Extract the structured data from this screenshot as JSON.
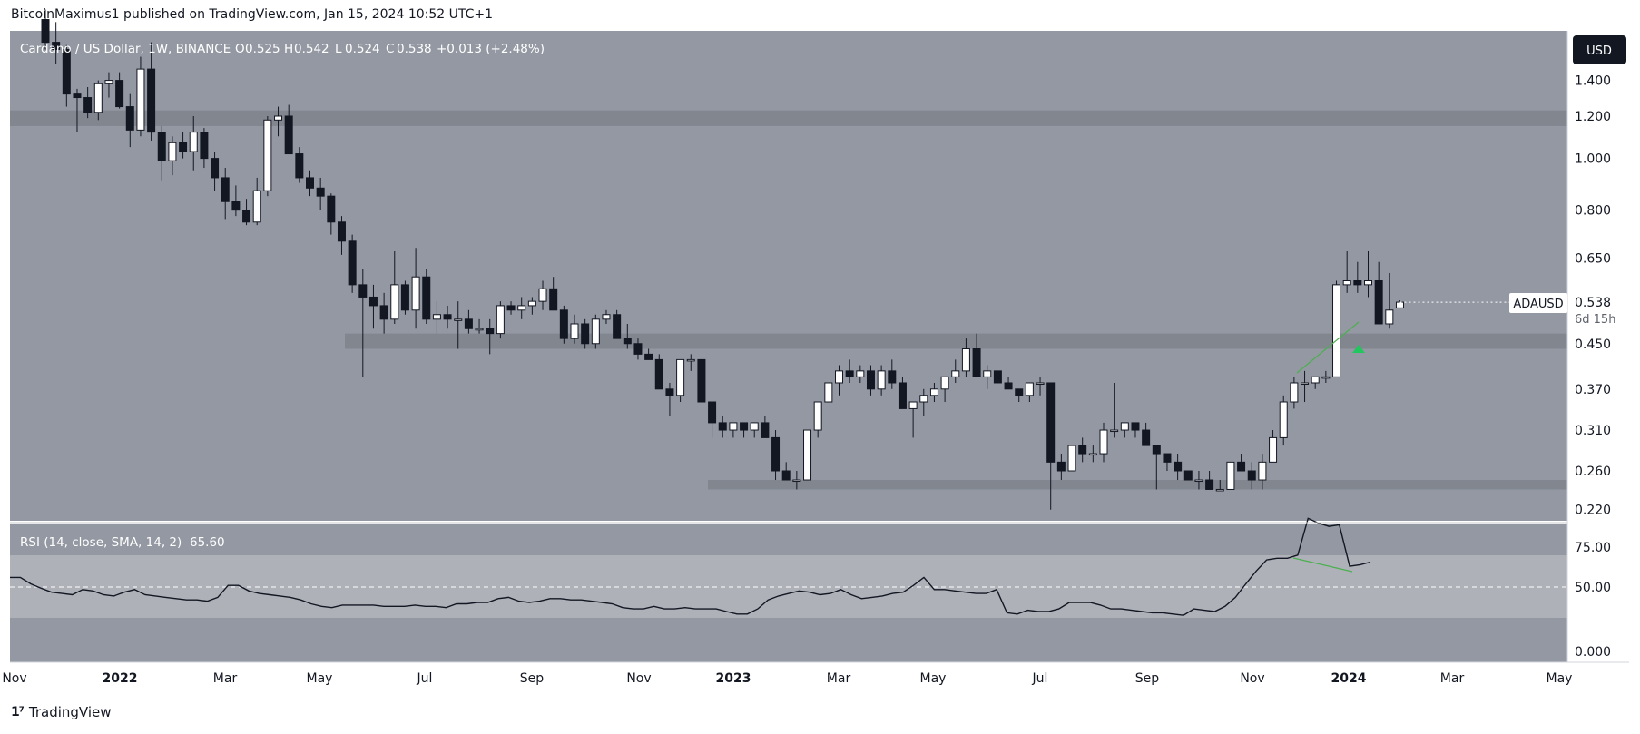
{
  "publisher_line": "BitcoinMaximus1 published on TradingView.com, Jan 15, 2024 10:52 UTC+1",
  "footer_brand": "TradingView",
  "colors": {
    "pane_bg": "#9398a2",
    "rsi_band": "#aeb1b8",
    "zone": "#7e828c",
    "up_body": "#ffffff",
    "down_body": "#131722",
    "wick": "#131722",
    "divergence": "#4caf50",
    "arrow": "#22c55e",
    "usd_btn": "#131722"
  },
  "legend": {
    "symbol": "Cardano / US Dollar, 1W, BINANCE",
    "o_label": "O",
    "o": "0.525",
    "h_label": "H",
    "h": "0.542",
    "l_label": "L",
    "l": "0.524",
    "c_label": "C",
    "c": "0.538",
    "change": "+0.013 (+2.48%)"
  },
  "usd_button": "USD",
  "price_tag": {
    "symbol": "ADAUSD",
    "price": "0.538",
    "countdown": "6d 15h"
  },
  "rsi_legend": {
    "label": "RSI (14, close, SMA, 14, 2)",
    "value": "65.60"
  },
  "chart_data": [
    {
      "type": "candlestick",
      "title": "Cardano / US Dollar, 1W, BINANCE",
      "y_scale": "log",
      "y_ticks": [
        "1.400",
        "1.200",
        "1.000",
        "0.800",
        "0.650",
        "0.450",
        "0.370",
        "0.310",
        "0.260",
        "0.220"
      ],
      "x_ticks": [
        "Nov",
        "2022",
        "Mar",
        "May",
        "Jul",
        "Sep",
        "Nov",
        "2023",
        "Mar",
        "May",
        "Jul",
        "Sep",
        "Nov",
        "2024",
        "Mar",
        "May"
      ],
      "horizontal_zones": [
        [
          1.15,
          1.23
        ],
        [
          0.44,
          0.47
        ],
        [
          0.24,
          0.25
        ]
      ],
      "last_close": 0.538,
      "candles_ohlc": [
        [
          1.82,
          1.9,
          1.6,
          1.65
        ],
        [
          1.65,
          1.8,
          1.5,
          1.6
        ],
        [
          1.6,
          1.63,
          1.25,
          1.32
        ],
        [
          1.32,
          1.35,
          1.12,
          1.3
        ],
        [
          1.3,
          1.36,
          1.19,
          1.22
        ],
        [
          1.22,
          1.4,
          1.18,
          1.38
        ],
        [
          1.38,
          1.45,
          1.3,
          1.4
        ],
        [
          1.4,
          1.45,
          1.24,
          1.25
        ],
        [
          1.25,
          1.32,
          1.05,
          1.13
        ],
        [
          1.13,
          1.55,
          1.1,
          1.47
        ],
        [
          1.47,
          1.65,
          1.08,
          1.12
        ],
        [
          1.12,
          1.15,
          0.91,
          0.99
        ],
        [
          0.99,
          1.1,
          0.93,
          1.07
        ],
        [
          1.07,
          1.12,
          1.0,
          1.03
        ],
        [
          1.03,
          1.2,
          0.95,
          1.12
        ],
        [
          1.12,
          1.14,
          0.96,
          1.0
        ],
        [
          1.0,
          1.03,
          0.87,
          0.92
        ],
        [
          0.92,
          0.96,
          0.77,
          0.83
        ],
        [
          0.83,
          0.89,
          0.78,
          0.8
        ],
        [
          0.8,
          0.84,
          0.75,
          0.76
        ],
        [
          0.76,
          0.92,
          0.75,
          0.87
        ],
        [
          0.87,
          1.2,
          0.85,
          1.18
        ],
        [
          1.18,
          1.25,
          1.1,
          1.2
        ],
        [
          1.2,
          1.26,
          1.02,
          1.02
        ],
        [
          1.02,
          1.05,
          0.9,
          0.92
        ],
        [
          0.92,
          0.95,
          0.85,
          0.88
        ],
        [
          0.88,
          0.92,
          0.8,
          0.85
        ],
        [
          0.85,
          0.86,
          0.72,
          0.76
        ],
        [
          0.76,
          0.78,
          0.66,
          0.7
        ],
        [
          0.7,
          0.72,
          0.56,
          0.58
        ],
        [
          0.58,
          0.62,
          0.39,
          0.55
        ],
        [
          0.55,
          0.58,
          0.48,
          0.53
        ],
        [
          0.53,
          0.56,
          0.47,
          0.5
        ],
        [
          0.5,
          0.67,
          0.49,
          0.58
        ],
        [
          0.58,
          0.59,
          0.51,
          0.52
        ],
        [
          0.52,
          0.68,
          0.48,
          0.6
        ],
        [
          0.6,
          0.62,
          0.49,
          0.5
        ],
        [
          0.5,
          0.54,
          0.47,
          0.51
        ],
        [
          0.51,
          0.53,
          0.48,
          0.5
        ],
        [
          0.5,
          0.54,
          0.44,
          0.5
        ],
        [
          0.5,
          0.52,
          0.47,
          0.48
        ],
        [
          0.48,
          0.5,
          0.47,
          0.48
        ],
        [
          0.48,
          0.5,
          0.43,
          0.47
        ],
        [
          0.47,
          0.54,
          0.46,
          0.53
        ],
        [
          0.53,
          0.54,
          0.51,
          0.52
        ],
        [
          0.52,
          0.55,
          0.5,
          0.53
        ],
        [
          0.53,
          0.55,
          0.51,
          0.54
        ],
        [
          0.54,
          0.59,
          0.52,
          0.57
        ],
        [
          0.57,
          0.6,
          0.52,
          0.52
        ],
        [
          0.52,
          0.53,
          0.45,
          0.46
        ],
        [
          0.46,
          0.51,
          0.45,
          0.49
        ],
        [
          0.49,
          0.5,
          0.44,
          0.45
        ],
        [
          0.45,
          0.51,
          0.44,
          0.5
        ],
        [
          0.5,
          0.52,
          0.49,
          0.51
        ],
        [
          0.51,
          0.52,
          0.46,
          0.46
        ],
        [
          0.46,
          0.49,
          0.44,
          0.45
        ],
        [
          0.45,
          0.46,
          0.42,
          0.43
        ],
        [
          0.43,
          0.44,
          0.42,
          0.42
        ],
        [
          0.42,
          0.43,
          0.37,
          0.37
        ],
        [
          0.37,
          0.38,
          0.33,
          0.36
        ],
        [
          0.36,
          0.42,
          0.35,
          0.42
        ],
        [
          0.42,
          0.43,
          0.4,
          0.42
        ],
        [
          0.42,
          0.42,
          0.36,
          0.35
        ],
        [
          0.35,
          0.35,
          0.3,
          0.32
        ],
        [
          0.32,
          0.33,
          0.3,
          0.31
        ],
        [
          0.31,
          0.32,
          0.3,
          0.32
        ],
        [
          0.32,
          0.32,
          0.3,
          0.31
        ],
        [
          0.31,
          0.32,
          0.3,
          0.32
        ],
        [
          0.32,
          0.33,
          0.3,
          0.3
        ],
        [
          0.3,
          0.31,
          0.25,
          0.26
        ],
        [
          0.26,
          0.27,
          0.25,
          0.25
        ],
        [
          0.25,
          0.26,
          0.24,
          0.25
        ],
        [
          0.25,
          0.31,
          0.25,
          0.31
        ],
        [
          0.31,
          0.35,
          0.3,
          0.35
        ],
        [
          0.35,
          0.38,
          0.35,
          0.38
        ],
        [
          0.38,
          0.41,
          0.36,
          0.4
        ],
        [
          0.4,
          0.42,
          0.38,
          0.39
        ],
        [
          0.39,
          0.41,
          0.38,
          0.4
        ],
        [
          0.4,
          0.41,
          0.36,
          0.37
        ],
        [
          0.37,
          0.41,
          0.36,
          0.4
        ],
        [
          0.4,
          0.42,
          0.37,
          0.38
        ],
        [
          0.38,
          0.39,
          0.35,
          0.34
        ],
        [
          0.34,
          0.35,
          0.3,
          0.35
        ],
        [
          0.35,
          0.37,
          0.33,
          0.36
        ],
        [
          0.36,
          0.38,
          0.35,
          0.37
        ],
        [
          0.37,
          0.39,
          0.35,
          0.39
        ],
        [
          0.39,
          0.42,
          0.38,
          0.4
        ],
        [
          0.4,
          0.46,
          0.39,
          0.44
        ],
        [
          0.44,
          0.47,
          0.39,
          0.39
        ],
        [
          0.39,
          0.41,
          0.37,
          0.4
        ],
        [
          0.4,
          0.4,
          0.38,
          0.38
        ],
        [
          0.38,
          0.39,
          0.37,
          0.37
        ],
        [
          0.37,
          0.37,
          0.35,
          0.36
        ],
        [
          0.36,
          0.38,
          0.35,
          0.38
        ],
        [
          0.38,
          0.39,
          0.36,
          0.38
        ],
        [
          0.38,
          0.38,
          0.22,
          0.27
        ],
        [
          0.27,
          0.28,
          0.25,
          0.26
        ],
        [
          0.26,
          0.29,
          0.26,
          0.29
        ],
        [
          0.29,
          0.3,
          0.27,
          0.28
        ],
        [
          0.28,
          0.29,
          0.27,
          0.28
        ],
        [
          0.28,
          0.32,
          0.27,
          0.31
        ],
        [
          0.31,
          0.38,
          0.3,
          0.31
        ],
        [
          0.31,
          0.32,
          0.3,
          0.32
        ],
        [
          0.32,
          0.32,
          0.3,
          0.31
        ],
        [
          0.31,
          0.32,
          0.29,
          0.29
        ],
        [
          0.29,
          0.29,
          0.24,
          0.28
        ],
        [
          0.28,
          0.28,
          0.26,
          0.27
        ],
        [
          0.27,
          0.28,
          0.25,
          0.26
        ],
        [
          0.26,
          0.26,
          0.25,
          0.25
        ],
        [
          0.25,
          0.26,
          0.24,
          0.25
        ],
        [
          0.25,
          0.26,
          0.24,
          0.24
        ],
        [
          0.24,
          0.25,
          0.24,
          0.24
        ],
        [
          0.24,
          0.27,
          0.24,
          0.27
        ],
        [
          0.27,
          0.28,
          0.26,
          0.26
        ],
        [
          0.26,
          0.27,
          0.24,
          0.25
        ],
        [
          0.25,
          0.28,
          0.24,
          0.27
        ],
        [
          0.27,
          0.31,
          0.27,
          0.3
        ],
        [
          0.3,
          0.36,
          0.29,
          0.35
        ],
        [
          0.35,
          0.39,
          0.34,
          0.38
        ],
        [
          0.38,
          0.4,
          0.35,
          0.38
        ],
        [
          0.38,
          0.39,
          0.37,
          0.39
        ],
        [
          0.39,
          0.4,
          0.38,
          0.39
        ],
        [
          0.39,
          0.59,
          0.39,
          0.58
        ],
        [
          0.58,
          0.67,
          0.56,
          0.59
        ],
        [
          0.59,
          0.64,
          0.56,
          0.58
        ],
        [
          0.58,
          0.67,
          0.55,
          0.59
        ],
        [
          0.59,
          0.64,
          0.5,
          0.49
        ],
        [
          0.49,
          0.61,
          0.48,
          0.52
        ],
        [
          0.525,
          0.542,
          0.524,
          0.538
        ]
      ],
      "annotations": [
        "bullish divergence trend line",
        "green up arrow"
      ]
    },
    {
      "type": "line",
      "title": "RSI (14, close, SMA, 14, 2)",
      "y_ticks": [
        "75.00",
        "50.00",
        "0.000"
      ],
      "band": [
        30,
        70
      ],
      "midline": 50,
      "last_value": 65.6,
      "values": [
        56,
        56,
        52,
        49,
        46,
        45,
        44,
        48,
        47,
        44,
        43,
        46,
        48,
        44,
        43,
        42,
        41,
        40,
        40,
        39,
        42,
        51,
        51,
        47,
        45,
        44,
        43,
        42,
        40,
        37,
        35,
        34,
        36,
        36,
        36,
        36,
        35,
        35,
        35,
        36,
        35,
        35,
        34,
        37,
        37,
        38,
        38,
        41,
        42,
        39,
        38,
        39,
        41,
        41,
        40,
        40,
        39,
        38,
        37,
        34,
        33,
        33,
        35,
        33,
        33,
        34,
        33,
        33,
        33,
        31,
        29,
        29,
        33,
        40,
        43,
        45,
        47,
        46,
        44,
        45,
        48,
        44,
        41,
        42,
        43,
        45,
        46,
        51,
        56,
        48,
        48,
        47,
        46,
        45,
        45,
        48,
        30,
        29,
        32,
        31,
        31,
        33,
        38,
        38,
        38,
        36,
        33,
        33,
        32,
        31,
        30,
        30,
        29,
        28,
        33,
        32,
        31,
        35,
        42,
        52,
        60,
        67,
        68,
        68,
        70,
        93,
        90,
        88,
        89,
        63,
        64,
        65.6
      ]
    }
  ]
}
